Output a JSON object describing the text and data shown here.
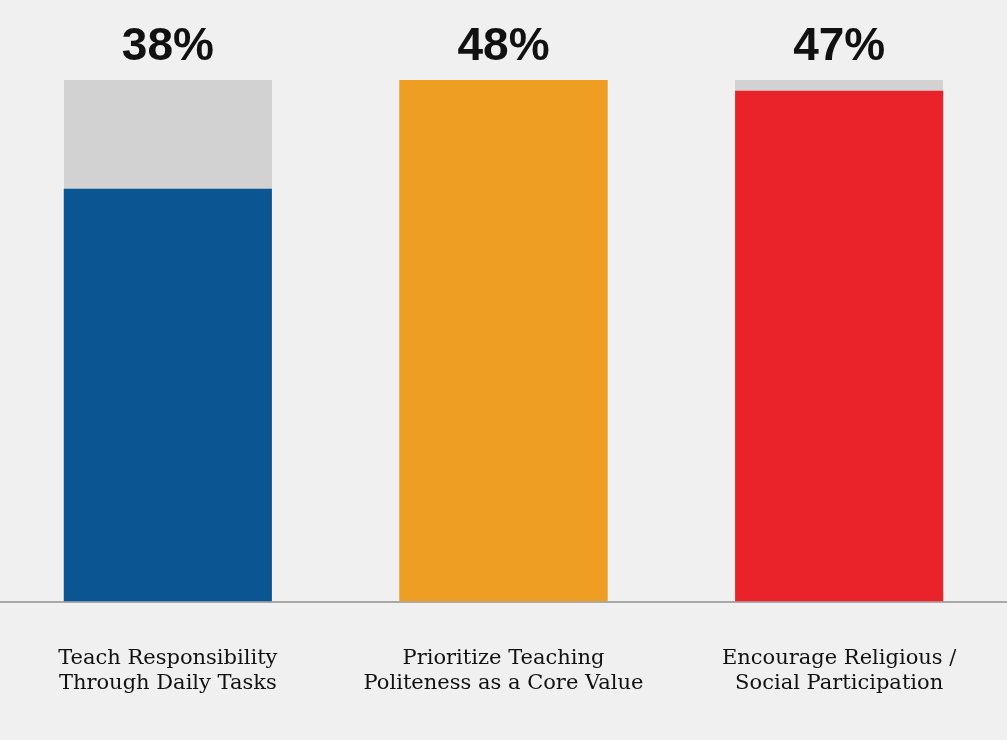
{
  "chart_data": {
    "type": "bar",
    "categories": [
      "Teach Responsibility Through Daily Tasks",
      "Prioritize Teaching Politeness as a Core Value",
      "Encourage Religious / Social Participation"
    ],
    "values": [
      38,
      48,
      47
    ],
    "colors": [
      "#0b5593",
      "#ee9e22",
      "#ea232a"
    ],
    "value_labels": [
      "38%",
      "48%",
      "47%"
    ],
    "grid": false,
    "legend": false
  }
}
